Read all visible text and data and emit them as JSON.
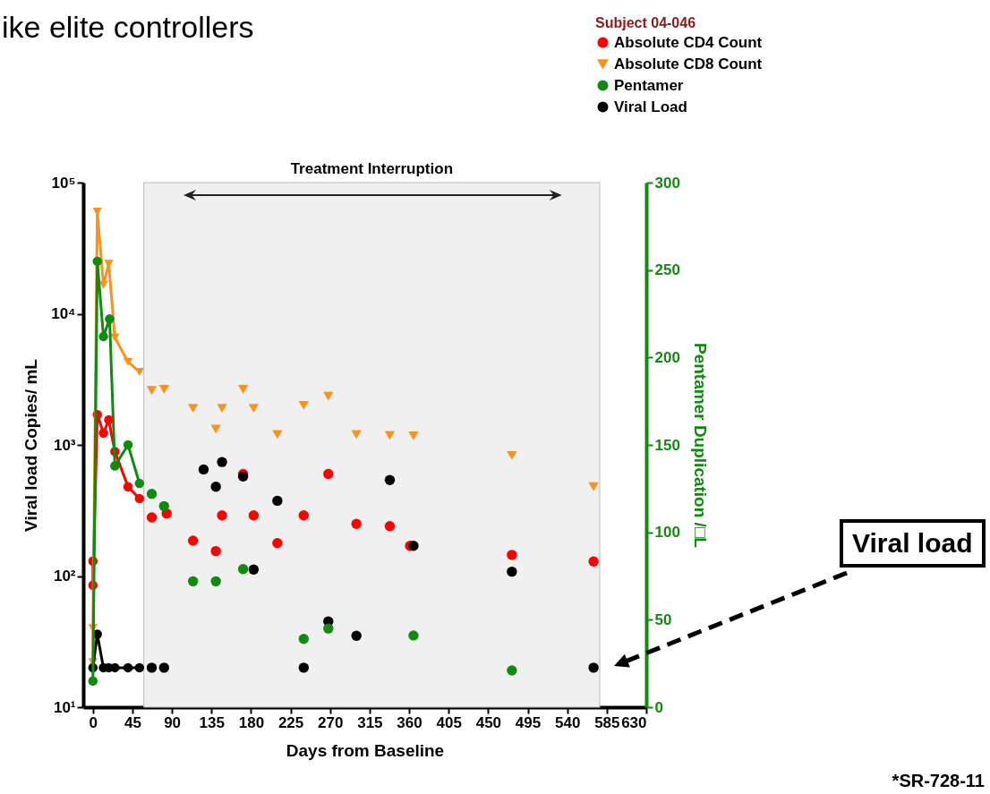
{
  "chart_data": {
    "type": "line",
    "title": "ike elite controllers",
    "xlabel": "Days from Baseline",
    "ylabel": "Viral load Copies/ mL",
    "y2label": "Pentamer Duplication /□L",
    "legend_title": "Subject 04-046",
    "legend": "top right",
    "log": "y",
    "grid": false,
    "xlim": [
      -11,
      630
    ],
    "xticks": [
      0,
      45,
      90,
      135,
      180,
      225,
      270,
      315,
      360,
      405,
      450,
      495,
      540,
      585,
      630
    ],
    "ylim": [
      10,
      100000
    ],
    "yticks": [
      {
        "value": 10,
        "label": "10¹"
      },
      {
        "value": 100,
        "label": "10²"
      },
      {
        "value": 1000,
        "label": "10³"
      },
      {
        "value": 10000,
        "label": "10⁴"
      },
      {
        "value": 100000,
        "label": "10⁵"
      }
    ],
    "y2lim": [
      0,
      300
    ],
    "y2ticks": [
      0,
      50,
      100,
      150,
      200,
      250,
      300
    ],
    "bands": [
      {
        "axis": "x",
        "from": 58,
        "to": 577,
        "label": "Treatment Interruption",
        "color": "#f0f0f0"
      }
    ],
    "annotations": [
      "*SR-728-11",
      "Viral load"
    ],
    "series": [
      {
        "name": "Absolute CD4 Count",
        "color": "#ff0000",
        "marker": "circle",
        "x": [
          0,
          0,
          5,
          12,
          18,
          25,
          40,
          53
        ],
        "values": [
          130,
          85,
          1700,
          1230,
          1550,
          890,
          480,
          390
        ]
      },
      {
        "name": "Absolute CD8 Count",
        "color": "#f7931e",
        "marker": "triangle",
        "x": [
          0,
          0,
          5,
          12,
          18,
          25,
          40,
          53
        ],
        "values": [
          22,
          40,
          60000,
          16600,
          24000,
          6600,
          4300,
          3600
        ]
      },
      {
        "name": "Pentamer",
        "color": "#128a12",
        "marker": "circle",
        "axis": "y2",
        "x": [
          0,
          5,
          12,
          19,
          25,
          40,
          53
        ],
        "values": [
          15,
          255,
          212,
          222,
          138,
          150,
          128
        ]
      },
      {
        "name": "Viral Load",
        "color": "#000000",
        "marker": "circle",
        "x": [
          0,
          5,
          12,
          18,
          25,
          40,
          53
        ],
        "values": [
          20,
          36,
          20,
          20,
          20,
          20,
          20
        ]
      },
      {
        "color": "#ff0000",
        "type": "scatter",
        "marker": "circle",
        "x": [
          67,
          84,
          114,
          140,
          147,
          171,
          183,
          210,
          240,
          268,
          300,
          338,
          361,
          477,
          570
        ],
        "values": [
          280,
          300,
          186,
          155,
          290,
          600,
          290,
          178,
          290,
          600,
          250,
          240,
          170,
          145,
          129
        ]
      },
      {
        "color": "#f7931e",
        "type": "scatter",
        "marker": "triangle",
        "x": [
          67,
          81,
          114,
          140,
          147,
          171,
          183,
          210,
          240,
          268,
          300,
          338,
          365,
          477,
          570
        ],
        "values": [
          2600,
          2650,
          1900,
          1320,
          1900,
          2650,
          1900,
          1200,
          2000,
          2350,
          1200,
          1180,
          1170,
          830,
          480
        ]
      },
      {
        "color": "#128a12",
        "type": "scatter",
        "marker": "circle",
        "axis": "y2",
        "x": [
          67,
          81,
          114,
          140,
          171,
          240,
          268,
          365,
          477
        ],
        "values": [
          122,
          115,
          72,
          72,
          79,
          39,
          45,
          41,
          21
        ]
      },
      {
        "color": "#000000",
        "type": "scatter",
        "marker": "circle",
        "x": [
          67,
          81,
          126,
          140,
          147,
          171,
          183,
          210,
          240,
          268,
          300,
          338,
          365,
          477,
          570
        ],
        "values": [
          20,
          20,
          650,
          480,
          740,
          575,
          112,
          375,
          20,
          45,
          35,
          540,
          170,
          108,
          20
        ]
      }
    ]
  }
}
